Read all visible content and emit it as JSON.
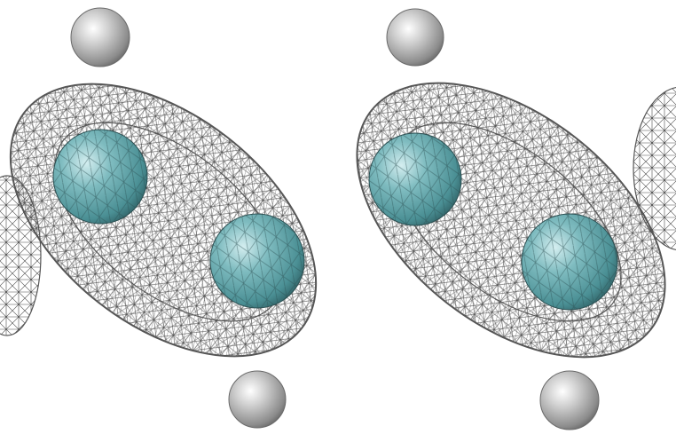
{
  "scene": {
    "background": "#ffffff",
    "view_count": 2,
    "views": [
      {
        "id": "left-view",
        "atoms": [
          {
            "element": "carbon",
            "color": "#5fa2a6"
          },
          {
            "element": "carbon",
            "color": "#5fa2a6"
          },
          {
            "element": "hydrogen",
            "color": "#b5b5b5"
          },
          {
            "element": "hydrogen",
            "color": "#b5b5b5"
          }
        ],
        "surface": {
          "style": "wireframe",
          "color": "#555555"
        }
      },
      {
        "id": "right-view",
        "atoms": [
          {
            "element": "carbon",
            "color": "#5fa2a6"
          },
          {
            "element": "carbon",
            "color": "#5fa2a6"
          },
          {
            "element": "hydrogen",
            "color": "#b5b5b5"
          },
          {
            "element": "hydrogen",
            "color": "#b5b5b5"
          }
        ],
        "surface": {
          "style": "wireframe",
          "color": "#555555"
        }
      }
    ]
  }
}
